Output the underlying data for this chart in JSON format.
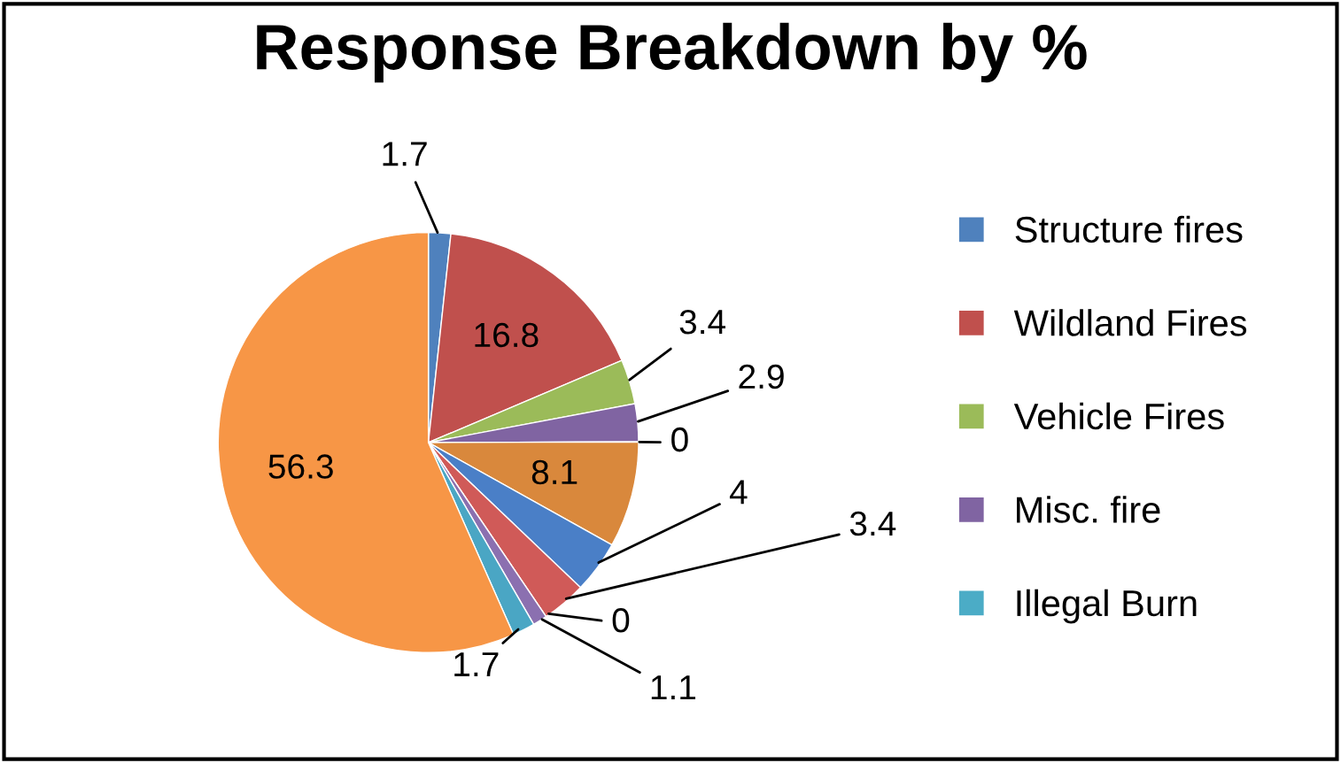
{
  "chart_data": {
    "type": "pie",
    "title": "Response Breakdown by %",
    "categories": [
      "Structure fires",
      "Wildland Fires",
      "Vehicle Fires",
      "Misc. fire",
      "Illegal Burn",
      null,
      null,
      null,
      null,
      null,
      null,
      null
    ],
    "values": [
      1.7,
      16.8,
      3.4,
      2.9,
      0,
      8.1,
      4,
      3.4,
      0,
      1.1,
      1.7,
      56.3
    ],
    "colors": [
      "#4f81bd",
      "#c0504d",
      "#9bbb59",
      "#8064a2",
      "#4bacc6",
      "#d9883c",
      "#4a7fc7",
      "#d05a58",
      "#a5c26b",
      "#8b70b0",
      "#4aa6c4",
      "#f79646"
    ],
    "value_labels": [
      "1.7",
      "16.8",
      "3.4",
      "2.9",
      "0",
      "8.1",
      "4",
      "3.4",
      "0",
      "1.1",
      "1.7",
      "56.3"
    ],
    "legend": "right"
  }
}
